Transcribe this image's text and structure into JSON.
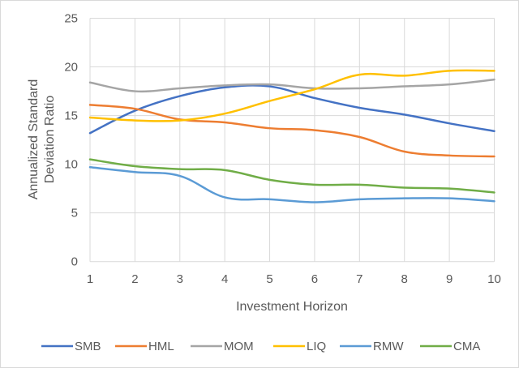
{
  "chart_data": {
    "type": "line",
    "title": "",
    "xlabel": "Investment Horizon",
    "ylabel": "Annualized Standard Deviation Ratio",
    "ylabel_lines": [
      "Annualized Standard",
      "Deviation Ratio"
    ],
    "x": [
      1,
      2,
      3,
      4,
      5,
      6,
      7,
      8,
      9,
      10
    ],
    "x_ticks": [
      "1",
      "2",
      "3",
      "4",
      "5",
      "6",
      "7",
      "8",
      "9",
      "10"
    ],
    "y_ticks": [
      "0",
      "5",
      "10",
      "15",
      "20",
      "25"
    ],
    "ylim": [
      0,
      25
    ],
    "grid": true,
    "smooth": true,
    "legend_position": "bottom",
    "series": [
      {
        "name": "SMB",
        "color": "#4472C4",
        "values": [
          13.2,
          15.5,
          17.0,
          17.9,
          18.0,
          16.8,
          15.8,
          15.1,
          14.2,
          13.4
        ]
      },
      {
        "name": "HML",
        "color": "#ED7D31",
        "values": [
          16.1,
          15.7,
          14.6,
          14.3,
          13.7,
          13.5,
          12.8,
          11.3,
          10.9,
          10.8
        ]
      },
      {
        "name": "MOM",
        "color": "#A5A5A5",
        "values": [
          18.4,
          17.5,
          17.8,
          18.1,
          18.2,
          17.8,
          17.8,
          18.0,
          18.2,
          18.7
        ]
      },
      {
        "name": "LIQ",
        "color": "#FFC000",
        "values": [
          14.8,
          14.5,
          14.5,
          15.2,
          16.5,
          17.7,
          19.2,
          19.1,
          19.6,
          19.6
        ]
      },
      {
        "name": "RMW",
        "color": "#5B9BD5",
        "values": [
          9.7,
          9.2,
          8.8,
          6.6,
          6.4,
          6.1,
          6.4,
          6.5,
          6.5,
          6.2
        ]
      },
      {
        "name": "CMA",
        "color": "#70AD47",
        "values": [
          10.5,
          9.8,
          9.5,
          9.4,
          8.4,
          7.9,
          7.9,
          7.6,
          7.5,
          7.1
        ]
      }
    ]
  }
}
